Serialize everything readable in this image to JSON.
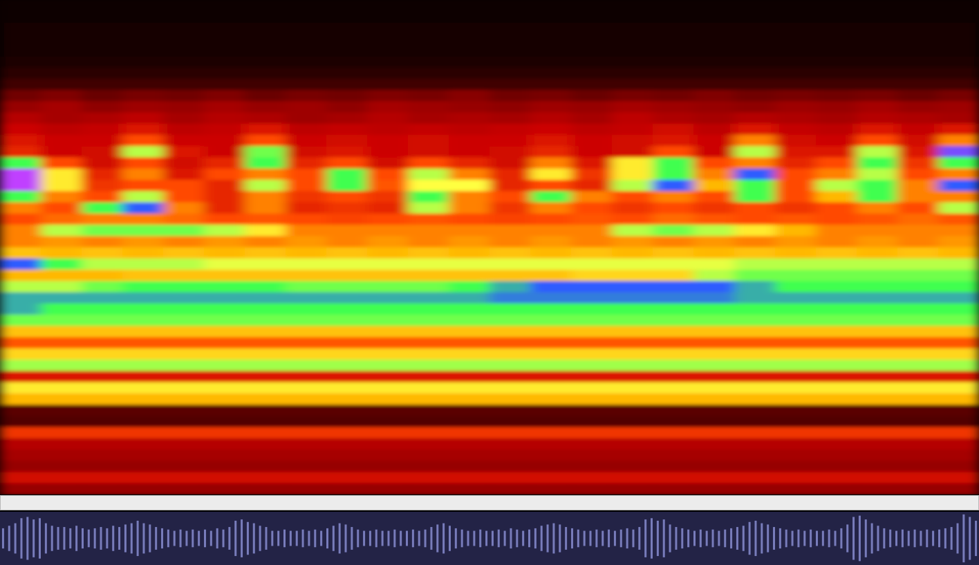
{
  "chart_data": [
    {
      "type": "heatmap",
      "tick_labels": false,
      "zlim": [
        0,
        10
      ],
      "z": [
        [
          0.3,
          0.3,
          0.3,
          0.3,
          0.3,
          0.3,
          0.3,
          0.3,
          0.3,
          0.3,
          0.3,
          0.3,
          0.3,
          0.3,
          0.3,
          0.3,
          0.3,
          0.3,
          0.3,
          0.3,
          0.3,
          0.3,
          0.3,
          0.3
        ],
        [
          0.3,
          0.3,
          0.3,
          0.3,
          0.3,
          0.3,
          0.3,
          0.3,
          0.3,
          0.3,
          0.3,
          0.3,
          0.3,
          0.3,
          0.3,
          0.3,
          0.3,
          0.3,
          0.3,
          0.3,
          0.3,
          0.3,
          0.3,
          0.3
        ],
        [
          0.4,
          0.4,
          0.4,
          0.4,
          0.4,
          0.4,
          0.4,
          0.4,
          0.4,
          0.4,
          0.4,
          0.4,
          0.4,
          0.4,
          0.4,
          0.4,
          0.4,
          0.4,
          0.4,
          0.4,
          0.4,
          0.4,
          0.4,
          0.4
        ],
        [
          0.4,
          0.4,
          0.4,
          0.4,
          0.4,
          0.4,
          0.4,
          0.4,
          0.4,
          0.4,
          0.4,
          0.4,
          0.4,
          0.4,
          0.4,
          0.4,
          0.4,
          0.4,
          0.4,
          0.4,
          0.4,
          0.4,
          0.4,
          0.4
        ],
        [
          0.5,
          0.5,
          0.5,
          0.5,
          0.5,
          0.5,
          0.5,
          0.5,
          0.5,
          0.5,
          0.5,
          0.5,
          0.5,
          0.5,
          0.5,
          0.5,
          0.5,
          0.5,
          0.5,
          0.5,
          0.5,
          0.5,
          0.5,
          0.5
        ],
        [
          0.6,
          0.6,
          0.6,
          0.6,
          0.6,
          0.6,
          0.6,
          0.6,
          0.6,
          0.6,
          0.6,
          0.6,
          0.6,
          0.6,
          0.6,
          0.6,
          0.6,
          0.6,
          0.6,
          0.6,
          0.6,
          0.6,
          0.6,
          0.6
        ],
        [
          0.9,
          0.9,
          0.9,
          0.9,
          0.9,
          0.9,
          0.9,
          0.9,
          0.9,
          0.9,
          0.9,
          0.9,
          0.9,
          0.9,
          0.9,
          0.9,
          0.9,
          0.9,
          0.9,
          0.9,
          0.9,
          0.9,
          0.9,
          0.9
        ],
        [
          1.4,
          1.4,
          1.4,
          1.4,
          1.4,
          1.4,
          1.4,
          1.4,
          1.4,
          1.4,
          1.4,
          1.4,
          1.4,
          1.4,
          1.4,
          1.4,
          1.4,
          1.4,
          1.4,
          1.4,
          1.4,
          1.4,
          1.4,
          1.4
        ],
        [
          2.3,
          2.5,
          2.2,
          2.4,
          2.3,
          2.5,
          2.2,
          2.4,
          2.3,
          2.5,
          2.4,
          2.6,
          2.3,
          2.4,
          2.2,
          2.4,
          2.3,
          2.5,
          2.3,
          2.4,
          2.3,
          2.4,
          2.2,
          2.4
        ],
        [
          2.8,
          3,
          2.7,
          2.9,
          2.8,
          3,
          2.8,
          2.9,
          2.7,
          3,
          2.9,
          2.8,
          2.7,
          2.9,
          2.8,
          3,
          2.9,
          2.8,
          2.7,
          2.9,
          2.8,
          3,
          2.8,
          2.9
        ],
        [
          3.2,
          3,
          3.1,
          3.3,
          3,
          3.2,
          3.1,
          2.9,
          3,
          3.2,
          3,
          3.1,
          3,
          3.2,
          3,
          3.3,
          3.1,
          3,
          3.2,
          3.1,
          3,
          3.2,
          3.1,
          3
        ],
        [
          3.5,
          3.3,
          3.4,
          3.8,
          3.3,
          3.4,
          3.8,
          3.3,
          3.4,
          3.3,
          3.4,
          3.3,
          3.4,
          3.5,
          3.3,
          3.4,
          3.6,
          3.3,
          3.8,
          3.4,
          3.3,
          3.8,
          3.4,
          3.8
        ],
        [
          3.8,
          3.5,
          3.5,
          4.5,
          3.5,
          3.5,
          4.5,
          3.5,
          3.6,
          3.5,
          3.6,
          3.5,
          3.5,
          3.8,
          3.5,
          3.6,
          3.8,
          3.5,
          5,
          3.6,
          3.5,
          4.5,
          3.6,
          5
        ],
        [
          4,
          3.5,
          3.6,
          6.5,
          3.8,
          3.5,
          6.8,
          3.6,
          3.8,
          3.5,
          3.6,
          3.5,
          3.6,
          4,
          3.5,
          3.6,
          4.5,
          3.5,
          6.5,
          3.8,
          3.8,
          6.5,
          3.8,
          8.5
        ],
        [
          7,
          4.5,
          3.6,
          4.5,
          3.6,
          4,
          7,
          4,
          4.5,
          3.6,
          4.5,
          4,
          3.6,
          5,
          3.8,
          6,
          7,
          4.5,
          5,
          4,
          4.5,
          7,
          4.2,
          7
        ],
        [
          9,
          6,
          4,
          5,
          3.8,
          4.5,
          5,
          4.5,
          7,
          4.5,
          6.5,
          5,
          4,
          6,
          4.2,
          6,
          7,
          5,
          8,
          4.5,
          5,
          6.5,
          4.5,
          5
        ],
        [
          9,
          6,
          4.2,
          4.5,
          4.5,
          4,
          6.5,
          4.5,
          7,
          4.6,
          6.2,
          6.2,
          4,
          4.5,
          4,
          6.5,
          8,
          5.5,
          7,
          4.5,
          6.5,
          7,
          5,
          8
        ],
        [
          7,
          5,
          4.5,
          6.5,
          4.5,
          4,
          5,
          4.2,
          4.5,
          4.2,
          7,
          5,
          4.5,
          7,
          5,
          4.5,
          5,
          4.5,
          7,
          4.5,
          5.5,
          7,
          5,
          5
        ],
        [
          5,
          4.5,
          7,
          8,
          5,
          4,
          5,
          4,
          4.2,
          4,
          6.5,
          5,
          4.2,
          5,
          4.5,
          4.2,
          4.5,
          4.2,
          4.5,
          4.2,
          4.5,
          5,
          4.5,
          6.5
        ],
        [
          4.5,
          4.8,
          5,
          5,
          4.8,
          4.5,
          4.6,
          4.5,
          4.4,
          4.5,
          4.6,
          4.5,
          4.4,
          4.5,
          4.6,
          4.5,
          4.8,
          4.6,
          4.5,
          4.6,
          4.5,
          4.6,
          4.8,
          4.6
        ],
        [
          5,
          6.5,
          6.8,
          6.8,
          6.8,
          6.5,
          6,
          5,
          5,
          5,
          5,
          5,
          5,
          5,
          5,
          6.5,
          6.8,
          6.5,
          6,
          5.5,
          5,
          5,
          5,
          5
        ],
        [
          5,
          5.2,
          5,
          5.2,
          5,
          5.2,
          5,
          5.2,
          5,
          5.2,
          5,
          5.2,
          5,
          5.2,
          5,
          5.2,
          5,
          5.2,
          5,
          5.2,
          5,
          5.2,
          5,
          5.2
        ],
        [
          5.6,
          5.5,
          5.6,
          5.5,
          5.6,
          5.5,
          5.6,
          5.5,
          5.6,
          5.5,
          5.6,
          5.5,
          5.6,
          5.5,
          5.6,
          5.5,
          5.6,
          5.5,
          5.6,
          5.5,
          5.6,
          5.5,
          5.6,
          5.5
        ],
        [
          8,
          7,
          6.5,
          6.5,
          6.5,
          6.3,
          6.3,
          6.3,
          6.3,
          6.3,
          6.3,
          6.3,
          6.3,
          6.3,
          6.3,
          6.3,
          6.3,
          6.3,
          6.5,
          6.5,
          6.5,
          6.5,
          6.5,
          6.5
        ],
        [
          5.5,
          5.5,
          5.5,
          5.6,
          5.6,
          5.6,
          5.6,
          5.6,
          5.6,
          5.6,
          5.6,
          5.6,
          5.6,
          5.6,
          5.8,
          5.8,
          5.8,
          6.5,
          6.8,
          6.8,
          6.8,
          6.8,
          6.8,
          6.8
        ],
        [
          6.5,
          6.5,
          6.8,
          7,
          7,
          7,
          7,
          6.8,
          6.8,
          6.8,
          6.8,
          7,
          7.5,
          8,
          8,
          8,
          8,
          8,
          7.5,
          7,
          7,
          7,
          7,
          7
        ],
        [
          7.5,
          7.5,
          7.5,
          7.5,
          7.5,
          7.5,
          7.5,
          7.5,
          7.5,
          7.5,
          7.5,
          7.5,
          7.8,
          7.8,
          7.8,
          7.8,
          7.8,
          7.8,
          7.5,
          7.5,
          7.5,
          7.5,
          7.5,
          7.5
        ],
        [
          7.5,
          7,
          7,
          7,
          7,
          7,
          7,
          7,
          7,
          7,
          7,
          7,
          7,
          7,
          7,
          7,
          7,
          7,
          7,
          7,
          7,
          7,
          7,
          7
        ],
        [
          6.8,
          6.8,
          6.8,
          6.8,
          6.8,
          6.8,
          6.8,
          6.8,
          6.8,
          6.8,
          6.8,
          6.8,
          6.8,
          6.8,
          6.8,
          6.8,
          6.8,
          6.8,
          6.8,
          6.8,
          6.8,
          6.8,
          6.8,
          6.8
        ],
        [
          5.6,
          5.6,
          5.6,
          5.6,
          5.6,
          5.6,
          5.6,
          5.6,
          5.6,
          5.6,
          5.6,
          5.6,
          5.6,
          5.6,
          5.6,
          5.6,
          5.6,
          5.6,
          5.6,
          5.6,
          5.6,
          5.6,
          5.6,
          5.6
        ],
        [
          4.6,
          4.6,
          4.6,
          4.6,
          4.6,
          4.6,
          4.6,
          4.6,
          4.6,
          4.6,
          4.6,
          4.6,
          4.6,
          4.6,
          4.6,
          4.6,
          4.6,
          4.6,
          4.6,
          4.6,
          4.6,
          4.6,
          4.6,
          4.6
        ],
        [
          5.8,
          5.8,
          5.8,
          5.8,
          5.8,
          5.8,
          5.8,
          5.8,
          5.8,
          5.8,
          5.8,
          5.8,
          5.8,
          5.8,
          5.8,
          5.8,
          5.8,
          5.8,
          5.8,
          5.8,
          5.8,
          5.8,
          5.8,
          5.8
        ],
        [
          6.6,
          6.6,
          6.6,
          6.6,
          6.6,
          6.6,
          6.6,
          6.6,
          6.6,
          6.6,
          6.6,
          6.6,
          6.6,
          6.6,
          6.6,
          6.6,
          6.6,
          6.6,
          6.6,
          6.6,
          6.6,
          6.6,
          6.6,
          6.6
        ],
        [
          3.8,
          3.8,
          3.8,
          3.8,
          3.8,
          3.8,
          3.8,
          3.8,
          3.8,
          3.8,
          3.8,
          3.8,
          3.8,
          3.8,
          3.8,
          3.8,
          3.8,
          3.8,
          3.8,
          3.8,
          3.8,
          3.8,
          3.8,
          3.8
        ],
        [
          6,
          6,
          6,
          6,
          6,
          6,
          6,
          6,
          6,
          6,
          6,
          6,
          6,
          6,
          6,
          6,
          6,
          6,
          6,
          6,
          6,
          6,
          6,
          6
        ],
        [
          5.5,
          5.5,
          5.5,
          5.5,
          5.5,
          5.5,
          5.5,
          5.5,
          5.5,
          5.5,
          5.5,
          5.5,
          5.5,
          5.5,
          5.5,
          5.5,
          5.5,
          5.5,
          5.5,
          5.5,
          5.5,
          5.5,
          5.5,
          5.5
        ],
        [
          2,
          2,
          2,
          2,
          2,
          2,
          2,
          2,
          2,
          2,
          2,
          2,
          2,
          2,
          2,
          2,
          2,
          2,
          2,
          2,
          2,
          2,
          2,
          2
        ],
        [
          1.8,
          1.8,
          1.8,
          1.8,
          1.8,
          1.8,
          1.8,
          1.8,
          1.8,
          1.8,
          1.8,
          1.8,
          1.8,
          1.8,
          1.8,
          1.8,
          1.8,
          1.8,
          1.8,
          1.8,
          1.8,
          1.8,
          1.8,
          1.8
        ],
        [
          4.2,
          4.2,
          4.2,
          4.2,
          4.2,
          4.2,
          4.2,
          4.2,
          4.2,
          4.2,
          4.2,
          4.2,
          4.2,
          4.2,
          4.2,
          4.2,
          4.2,
          4.2,
          4.2,
          4.2,
          4.2,
          4.2,
          4.2,
          4.2
        ],
        [
          3.2,
          3.2,
          3.2,
          3.2,
          3.2,
          3.2,
          3.2,
          3.2,
          3.2,
          3.2,
          3.2,
          3.2,
          3.2,
          3.2,
          3.2,
          3.2,
          3.2,
          3.2,
          3.2,
          3.2,
          3.2,
          3.2,
          3.2,
          3.2
        ],
        [
          3,
          3,
          3,
          3,
          3,
          3,
          3,
          3,
          3,
          3,
          3,
          3,
          3,
          3,
          3,
          3,
          3,
          3,
          3,
          3,
          3,
          3,
          3,
          3
        ],
        [
          2.8,
          2.8,
          2.8,
          2.8,
          2.8,
          2.8,
          2.8,
          2.8,
          2.8,
          2.8,
          2.8,
          2.8,
          2.8,
          2.8,
          2.8,
          2.8,
          2.8,
          2.8,
          2.8,
          2.8,
          2.8,
          2.8,
          2.8,
          2.8
        ],
        [
          3.6,
          3.6,
          3.6,
          3.6,
          3.6,
          3.6,
          3.6,
          3.6,
          3.6,
          3.6,
          3.6,
          3.6,
          3.6,
          3.6,
          3.6,
          3.6,
          3.6,
          3.6,
          3.6,
          3.6,
          3.6,
          3.6,
          3.6,
          3.6
        ],
        [
          2.8,
          2.8,
          2.8,
          2.8,
          2.8,
          2.8,
          2.8,
          2.8,
          2.8,
          2.8,
          2.8,
          2.8,
          2.8,
          2.8,
          2.8,
          2.8,
          2.8,
          2.8,
          2.8,
          2.8,
          2.8,
          2.8,
          2.8,
          2.8
        ]
      ]
    },
    {
      "type": "waveform",
      "tick_labels": false,
      "color": "#8286c8",
      "ylim": [
        -1,
        1
      ],
      "values": [
        0.4,
        0.5,
        0.6,
        0.8,
        0.85,
        0.75,
        0.8,
        0.6,
        0.5,
        0.45,
        0.45,
        0.4,
        0.5,
        0.4,
        0.35,
        0.4,
        0.45,
        0.4,
        0.5,
        0.45,
        0.55,
        0.6,
        0.7,
        0.6,
        0.55,
        0.45,
        0.4,
        0.35,
        0.3,
        0.35,
        0.3,
        0.35,
        0.3,
        0.35,
        0.3,
        0.4,
        0.35,
        0.45,
        0.7,
        0.75,
        0.65,
        0.6,
        0.5,
        0.45,
        0.3,
        0.3,
        0.35,
        0.3,
        0.3,
        0.35,
        0.3,
        0.35,
        0.3,
        0.4,
        0.5,
        0.6,
        0.55,
        0.45,
        0.35,
        0.3,
        0.3,
        0.35,
        0.3,
        0.3,
        0.35,
        0.3,
        0.3,
        0.35,
        0.3,
        0.35,
        0.45,
        0.55,
        0.6,
        0.5,
        0.4,
        0.35,
        0.3,
        0.3,
        0.35,
        0.3,
        0.3,
        0.35,
        0.3,
        0.4,
        0.35,
        0.3,
        0.35,
        0.4,
        0.5,
        0.55,
        0.6,
        0.55,
        0.45,
        0.4,
        0.35,
        0.3,
        0.3,
        0.35,
        0.3,
        0.35,
        0.3,
        0.35,
        0.4,
        0.35,
        0.45,
        0.75,
        0.8,
        0.7,
        0.75,
        0.55,
        0.45,
        0.4,
        0.35,
        0.3,
        0.35,
        0.3,
        0.35,
        0.3,
        0.35,
        0.4,
        0.45,
        0.5,
        0.65,
        0.7,
        0.6,
        0.55,
        0.45,
        0.4,
        0.35,
        0.3,
        0.35,
        0.3,
        0.35,
        0.3,
        0.3,
        0.35,
        0.3,
        0.4,
        0.55,
        0.85,
        0.9,
        0.75,
        0.6,
        0.5,
        0.4,
        0.35,
        0.3,
        0.35,
        0.3,
        0.35,
        0.3,
        0.35,
        0.3,
        0.35,
        0.4,
        0.45,
        0.6,
        0.95,
        0.85,
        0.7
      ]
    }
  ]
}
